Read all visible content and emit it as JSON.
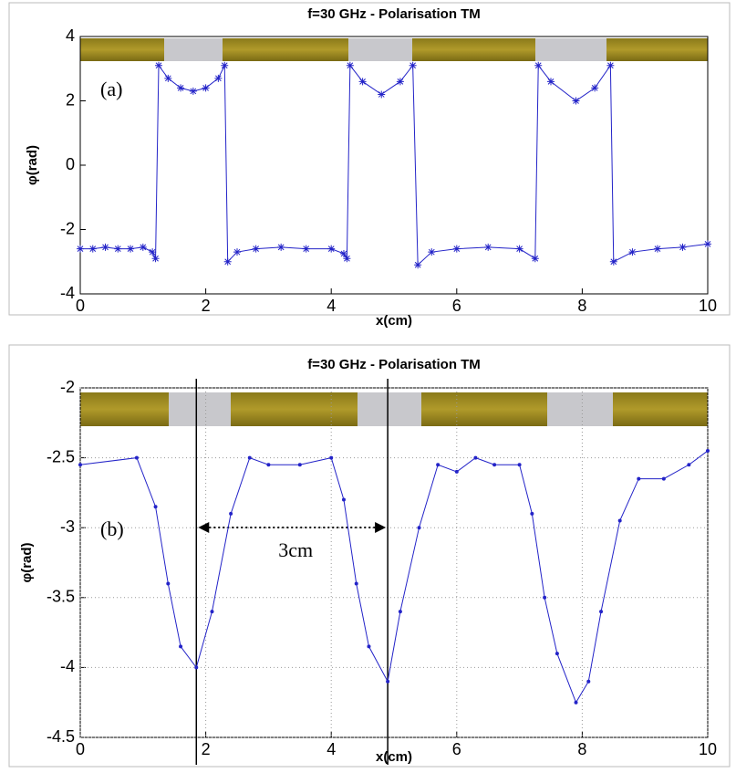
{
  "chart_data": [
    {
      "type": "line",
      "title": "f=30 GHz - Polarisation TM",
      "xlabel": "x(cm)",
      "ylabel": "φ(rad)",
      "annotations": [
        "(a)"
      ],
      "x": [
        0,
        0.2,
        0.4,
        0.6,
        0.8,
        1.0,
        1.15,
        1.2,
        1.25,
        1.4,
        1.6,
        1.8,
        2.0,
        2.2,
        2.3,
        2.35,
        2.5,
        2.8,
        3.2,
        3.6,
        4.0,
        4.2,
        4.25,
        4.3,
        4.5,
        4.8,
        5.1,
        5.3,
        5.38,
        5.6,
        6.0,
        6.5,
        7.0,
        7.25,
        7.3,
        7.5,
        7.9,
        8.2,
        8.45,
        8.5,
        8.8,
        9.2,
        9.6,
        10
      ],
      "series": [
        {
          "color": "#2323c8",
          "marker": "star",
          "values": [
            -2.6,
            -2.6,
            -2.55,
            -2.6,
            -2.6,
            -2.55,
            -2.7,
            -2.9,
            3.1,
            2.7,
            2.4,
            2.3,
            2.4,
            2.7,
            3.1,
            -3.0,
            -2.7,
            -2.6,
            -2.55,
            -2.6,
            -2.6,
            -2.75,
            -2.9,
            3.1,
            2.6,
            2.2,
            2.6,
            3.1,
            -3.1,
            -2.7,
            -2.6,
            -2.55,
            -2.6,
            -2.9,
            3.1,
            2.6,
            2.0,
            2.4,
            3.1,
            -3.0,
            -2.7,
            -2.6,
            -2.55,
            -2.45
          ]
        }
      ],
      "xlim": [
        0,
        10
      ],
      "xticks": [
        0,
        2,
        4,
        6,
        8,
        10
      ],
      "ylim": [
        -4,
        4
      ],
      "yticks": [
        -4,
        -2,
        0,
        2,
        4
      ],
      "grid": false
    },
    {
      "type": "line",
      "title": "f=30 GHz - Polarisation TM",
      "xlabel": "x(cm)",
      "ylabel": "φ(rad)",
      "annotations": [
        "(b)",
        "3cm"
      ],
      "vlines": [
        1.85,
        4.9
      ],
      "x": [
        0,
        0.9,
        1.2,
        1.4,
        1.6,
        1.85,
        2.1,
        2.4,
        2.7,
        3.0,
        3.5,
        4.0,
        4.2,
        4.4,
        4.6,
        4.9,
        5.1,
        5.4,
        5.7,
        6.0,
        6.3,
        6.6,
        7.0,
        7.2,
        7.4,
        7.6,
        7.9,
        8.1,
        8.3,
        8.6,
        8.9,
        9.3,
        9.7,
        10
      ],
      "series": [
        {
          "color": "#2323c8",
          "marker": "dot",
          "values": [
            -2.55,
            -2.5,
            -2.85,
            -3.4,
            -3.85,
            -4.0,
            -3.6,
            -2.9,
            -2.5,
            -2.55,
            -2.55,
            -2.5,
            -2.8,
            -3.4,
            -3.85,
            -4.1,
            -3.6,
            -3.0,
            -2.55,
            -2.6,
            -2.5,
            -2.55,
            -2.55,
            -2.9,
            -3.5,
            -3.9,
            -4.25,
            -4.1,
            -3.6,
            -2.95,
            -2.65,
            -2.65,
            -2.55,
            -2.45
          ]
        }
      ],
      "xlim": [
        0,
        10
      ],
      "xticks": [
        0,
        2,
        4,
        6,
        8,
        10
      ],
      "ylim": [
        -4.5,
        -2
      ],
      "yticks": [
        -4.5,
        -4,
        -3.5,
        -3,
        -2.5,
        -2
      ],
      "grid": true
    }
  ]
}
